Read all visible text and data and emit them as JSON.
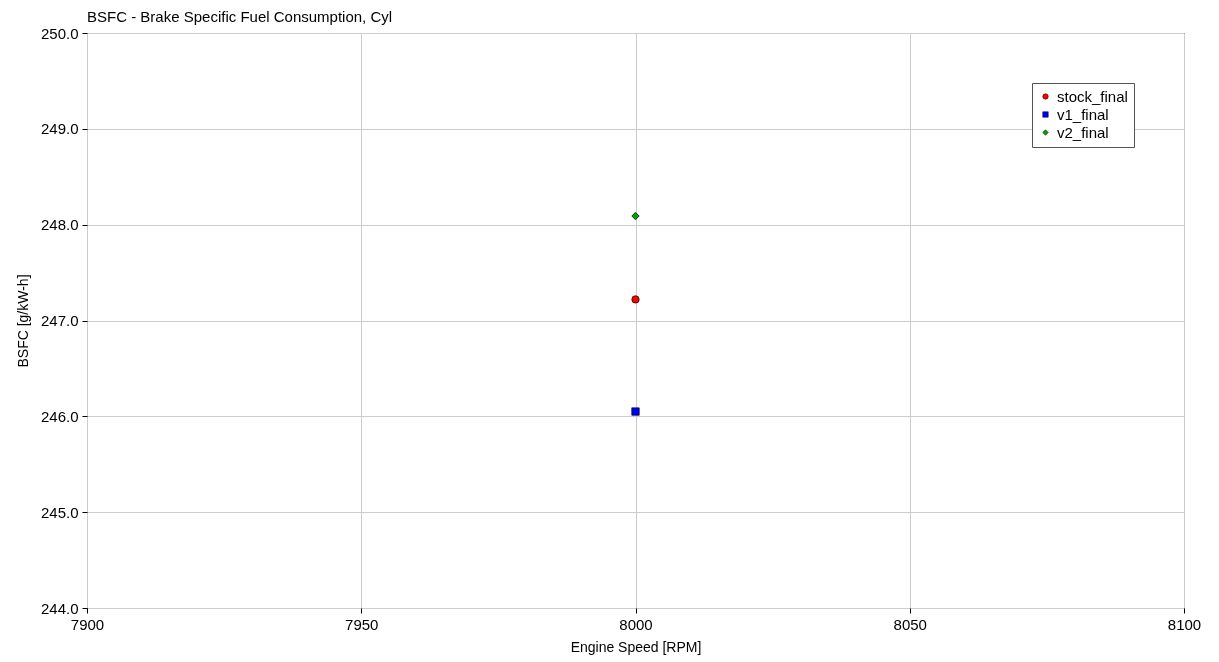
{
  "chart_data": {
    "type": "scatter",
    "title": "BSFC - Brake Specific Fuel Consumption, Cyl",
    "xlabel": "Engine Speed [RPM]",
    "ylabel": "BSFC [g/kW-h]",
    "x": [
      8000
    ],
    "series": [
      {
        "name": "stock_final",
        "color": "#ff0000",
        "marker": "circle",
        "values": [
          247.22
        ]
      },
      {
        "name": "v1_final",
        "color": "#0000ff",
        "marker": "square",
        "values": [
          246.05
        ]
      },
      {
        "name": "v2_final",
        "color": "#00a000",
        "marker": "diamond",
        "values": [
          248.09
        ]
      }
    ],
    "xlim": [
      7900,
      8100
    ],
    "xticks": [
      7900,
      7950,
      8000,
      8050,
      8100
    ],
    "ylim": [
      244,
      250
    ],
    "yticks": [
      {
        "value": 244,
        "label": "244.0"
      },
      {
        "value": 245,
        "label": "245.0"
      },
      {
        "value": 246,
        "label": "246.0"
      },
      {
        "value": 247,
        "label": "247.0"
      },
      {
        "value": 248,
        "label": "248.0"
      },
      {
        "value": 249,
        "label": "249.0"
      },
      {
        "value": 250,
        "label": "250.0"
      }
    ],
    "grid": true,
    "legend": "top right"
  }
}
